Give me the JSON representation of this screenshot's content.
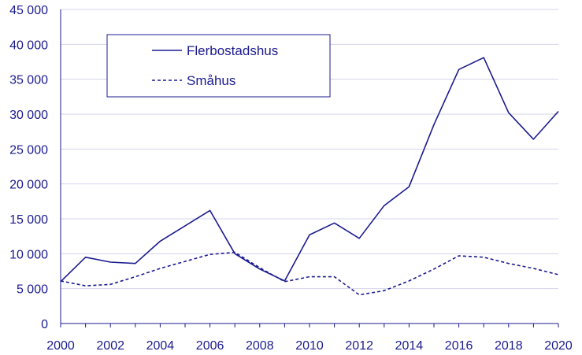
{
  "chart_data": {
    "type": "line",
    "x": [
      2000,
      2001,
      2002,
      2003,
      2004,
      2005,
      2006,
      2007,
      2008,
      2009,
      2010,
      2011,
      2012,
      2013,
      2014,
      2015,
      2016,
      2017,
      2018,
      2019,
      2020
    ],
    "x_tick_labels": [
      "2000",
      "2002",
      "2004",
      "2006",
      "2008",
      "2010",
      "2012",
      "2014",
      "2016",
      "2018",
      "2020"
    ],
    "y_tick_values": [
      0,
      5000,
      10000,
      15000,
      20000,
      25000,
      30000,
      35000,
      40000,
      45000
    ],
    "y_tick_labels": [
      "0",
      "5 000",
      "10 000",
      "15 000",
      "20 000",
      "25 000",
      "30 000",
      "35 000",
      "40 000",
      "45 000"
    ],
    "ylim": [
      0,
      45000
    ],
    "xlim": [
      2000,
      2020
    ],
    "grid": "horizontal",
    "legend_position": "top-left",
    "series": [
      {
        "name": "Flerbostadshus",
        "style": "solid",
        "color": "#1b1b8f",
        "values": [
          6000,
          9500,
          8800,
          8600,
          11800,
          14000,
          16200,
          10000,
          7800,
          6100,
          12700,
          14400,
          12200,
          16900,
          19600,
          28500,
          36400,
          38100,
          30200,
          26400,
          30400
        ]
      },
      {
        "name": "Småhus",
        "style": "dashed",
        "color": "#1b1b8f",
        "values": [
          6100,
          5400,
          5600,
          6700,
          7900,
          8900,
          9900,
          10200,
          8000,
          6000,
          6700,
          6700,
          4100,
          4700,
          6100,
          7800,
          9700,
          9500,
          8600,
          7900,
          7000
        ]
      }
    ]
  }
}
